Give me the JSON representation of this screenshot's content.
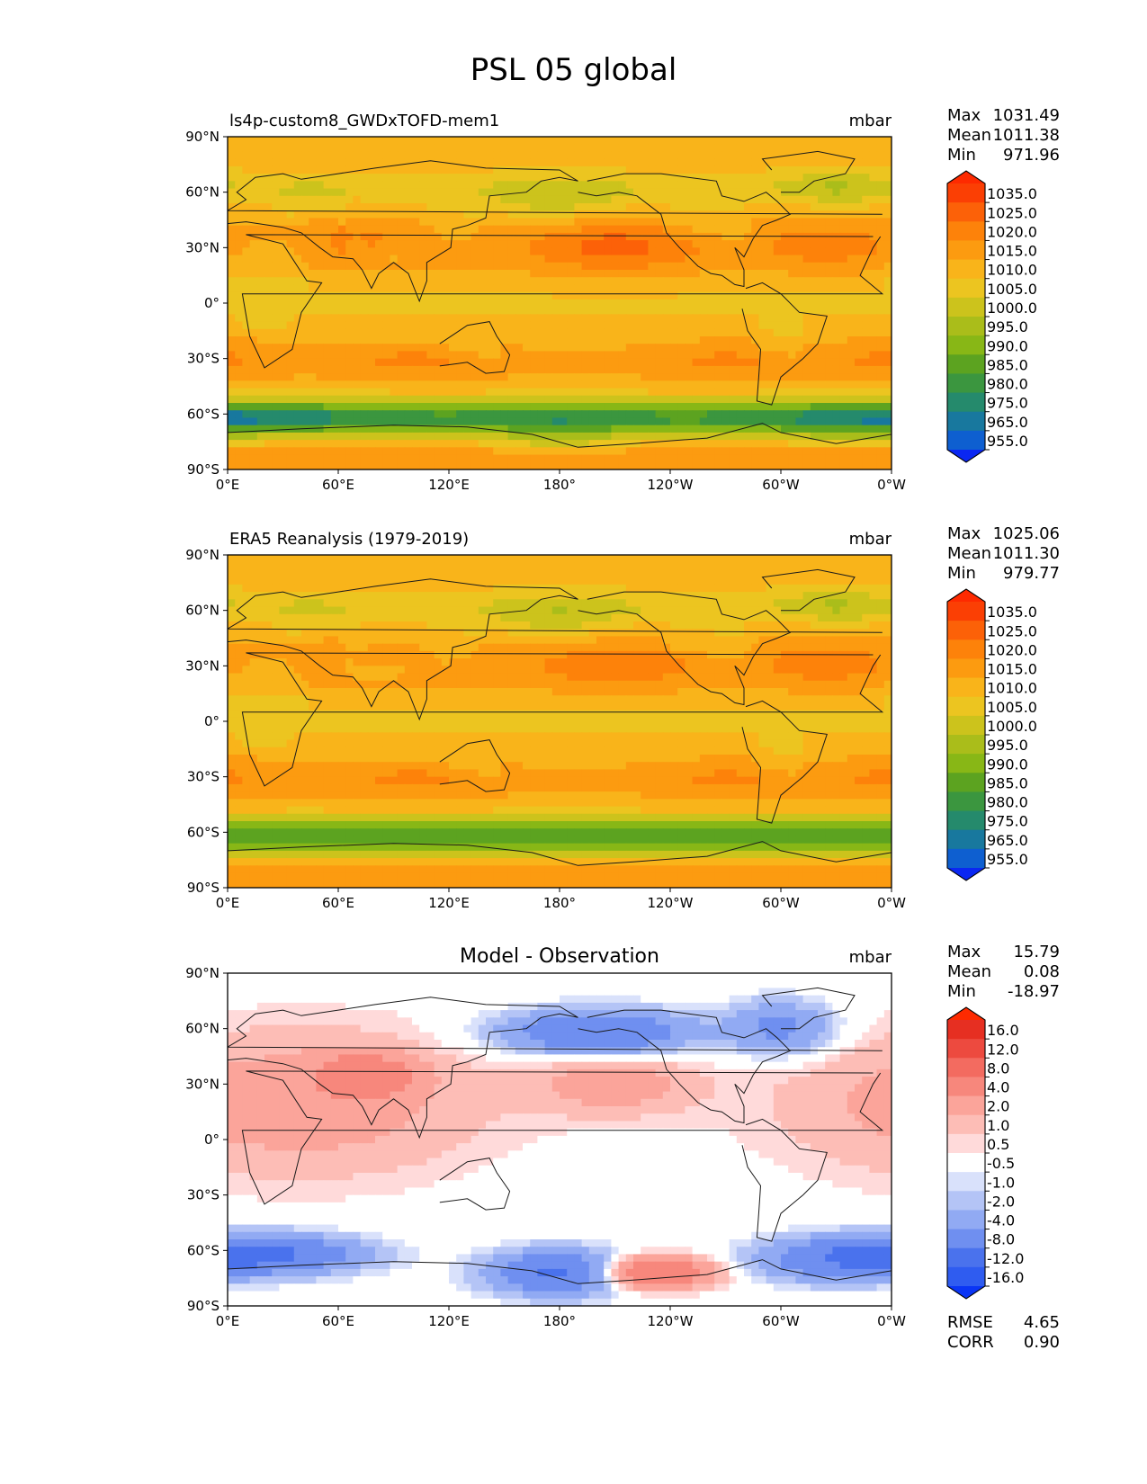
{
  "figure": {
    "title": "PSL 05 global"
  },
  "colors": {
    "abs_scale": [
      "#0a27f2",
      "#0e5fd0",
      "#18789e",
      "#258a6c",
      "#3b963f",
      "#5ca320",
      "#88b716",
      "#aabd1a",
      "#ccc31c",
      "#ecc520",
      "#f9b41a",
      "#fc9b10",
      "#fd820a",
      "#fc6108",
      "#fb3f04",
      "#fe2a00"
    ],
    "diff_scale": [
      "#0a35f5",
      "#2f5cf0",
      "#4a72ed",
      "#6f8ff0",
      "#91aaf3",
      "#b4c4f6",
      "#d9e1fb",
      "#ffffff",
      "#ffdada",
      "#fdbdb6",
      "#fba49a",
      "#f7877c",
      "#f36b60",
      "#ed4a3f",
      "#e62f22",
      "#fe2a00"
    ],
    "coastline": "#1a1a1a"
  },
  "axes": {
    "lat_ticks": [
      "90°N",
      "60°N",
      "30°N",
      "0°",
      "30°S",
      "60°S",
      "90°S"
    ],
    "lon_ticks": [
      "0°E",
      "60°E",
      "120°E",
      "180°",
      "120°W",
      "60°W",
      "0°W"
    ]
  },
  "panels": [
    {
      "id": "model",
      "title": "ls4p-custom8_GWDxTOFD-mem1",
      "title_style": "left",
      "units": "mbar",
      "stats": [
        {
          "label": "Max",
          "value": "1031.49"
        },
        {
          "label": "Mean",
          "value": "1011.38"
        },
        {
          "label": "Min",
          "value": "971.96"
        }
      ],
      "colorbar": {
        "scale": "abs",
        "labels": [
          "1035.0",
          "1025.0",
          "1020.0",
          "1015.0",
          "1010.0",
          "1005.0",
          "1000.0",
          "995.0",
          "990.0",
          "985.0",
          "980.0",
          "975.0",
          "965.0",
          "955.0"
        ]
      },
      "field": "model"
    },
    {
      "id": "obs",
      "title": "ERA5 Reanalysis (1979-2019)",
      "title_style": "left",
      "units": "mbar",
      "stats": [
        {
          "label": "Max",
          "value": "1025.06"
        },
        {
          "label": "Mean",
          "value": "1011.30"
        },
        {
          "label": "Min",
          "value": "979.77"
        }
      ],
      "colorbar": {
        "scale": "abs",
        "labels": [
          "1035.0",
          "1025.0",
          "1020.0",
          "1015.0",
          "1010.0",
          "1005.0",
          "1000.0",
          "995.0",
          "990.0",
          "985.0",
          "980.0",
          "975.0",
          "965.0",
          "955.0"
        ]
      },
      "field": "obs"
    },
    {
      "id": "diff",
      "title": "Model - Observation",
      "title_style": "center",
      "units": "mbar",
      "stats": [
        {
          "label": "Max",
          "value": "15.79"
        },
        {
          "label": "Mean",
          "value": "0.08"
        },
        {
          "label": "Min",
          "value": "-18.97"
        }
      ],
      "colorbar": {
        "scale": "diff",
        "labels": [
          "16.0",
          "12.0",
          "8.0",
          "4.0",
          "2.0",
          "1.0",
          "0.5",
          "-0.5",
          "-1.0",
          "-2.0",
          "-4.0",
          "-8.0",
          "-12.0",
          "-16.0"
        ]
      },
      "extra_stats": [
        {
          "label": "RMSE",
          "value": "4.65"
        },
        {
          "label": "CORR",
          "value": "0.90"
        }
      ],
      "field": "diff"
    }
  ]
}
